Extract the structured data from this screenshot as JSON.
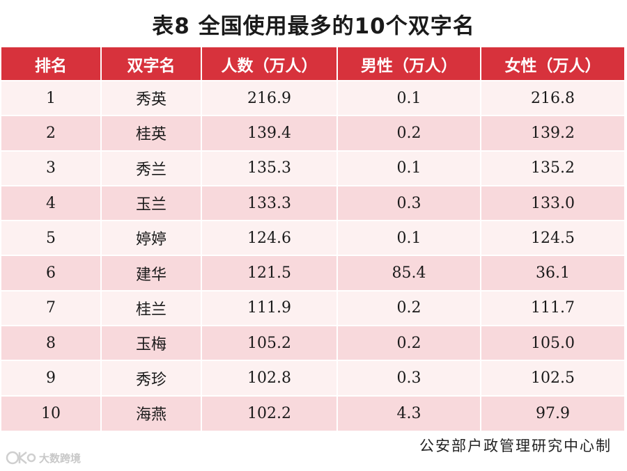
{
  "title": "表8  全国使用最多的10个双字名",
  "table": {
    "headers": [
      "排名",
      "双字名",
      "人数（万人）",
      "男性（万人）",
      "女性（万人）"
    ],
    "rows": [
      [
        "1",
        "秀英",
        "216.9",
        "0.1",
        "216.8"
      ],
      [
        "2",
        "桂英",
        "139.4",
        "0.2",
        "139.2"
      ],
      [
        "3",
        "秀兰",
        "135.3",
        "0.1",
        "135.2"
      ],
      [
        "4",
        "玉兰",
        "133.3",
        "0.3",
        "133.0"
      ],
      [
        "5",
        "婷婷",
        "124.6",
        "0.1",
        "124.5"
      ],
      [
        "6",
        "建华",
        "121.5",
        "85.4",
        "36.1"
      ],
      [
        "7",
        "桂兰",
        "111.9",
        "0.2",
        "111.7"
      ],
      [
        "8",
        "玉梅",
        "105.2",
        "0.2",
        "105.0"
      ],
      [
        "9",
        "秀珍",
        "102.8",
        "0.3",
        "102.5"
      ],
      [
        "10",
        "海燕",
        "102.2",
        "4.3",
        "97.9"
      ]
    ]
  },
  "credit": "公安部户政管理研究中心制",
  "watermark": {
    "text": "大数跨境",
    "logo_icon": "kd-logo-icon"
  },
  "colors": {
    "header_bg": "#d7323c",
    "row_light": "#fdf1f1",
    "row_dark": "#f8d9dc"
  }
}
